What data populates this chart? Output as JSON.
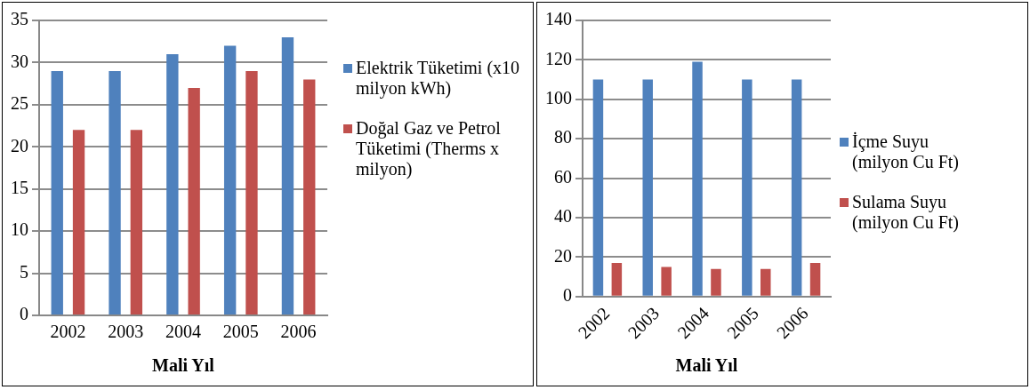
{
  "chart_data": [
    {
      "type": "bar",
      "xlabel": "Mali Yıl",
      "categories": [
        "2002",
        "2003",
        "2004",
        "2005",
        "2006"
      ],
      "series": [
        {
          "name": "Elektrik Tüketimi (x10 milyon kWh)",
          "color": "#4f81bd",
          "values": [
            29,
            29,
            31,
            32,
            33
          ]
        },
        {
          "name": "Doğal Gaz ve Petrol Tüketimi (Therms x milyon)",
          "color": "#c0504d",
          "values": [
            22,
            22,
            27,
            29,
            28
          ]
        }
      ],
      "ylim": [
        0,
        35
      ],
      "yticks": [
        0,
        5,
        10,
        15,
        20,
        25,
        30,
        35
      ],
      "grid": "y",
      "legend": "right"
    },
    {
      "type": "bar",
      "xlabel": "Mali Yıl",
      "categories": [
        "2002",
        "2003",
        "2004",
        "2005",
        "2006"
      ],
      "series": [
        {
          "name": "İçme Suyu (milyon Cu Ft)",
          "color": "#4f81bd",
          "values": [
            110,
            110,
            119,
            110,
            110
          ]
        },
        {
          "name": "Sulama Suyu (milyon Cu Ft)",
          "color": "#c0504d",
          "values": [
            17,
            15,
            14,
            14,
            17
          ]
        }
      ],
      "ylim": [
        0,
        140
      ],
      "yticks": [
        0,
        20,
        40,
        60,
        80,
        100,
        120,
        140
      ],
      "grid": "y",
      "legend": "right"
    }
  ]
}
